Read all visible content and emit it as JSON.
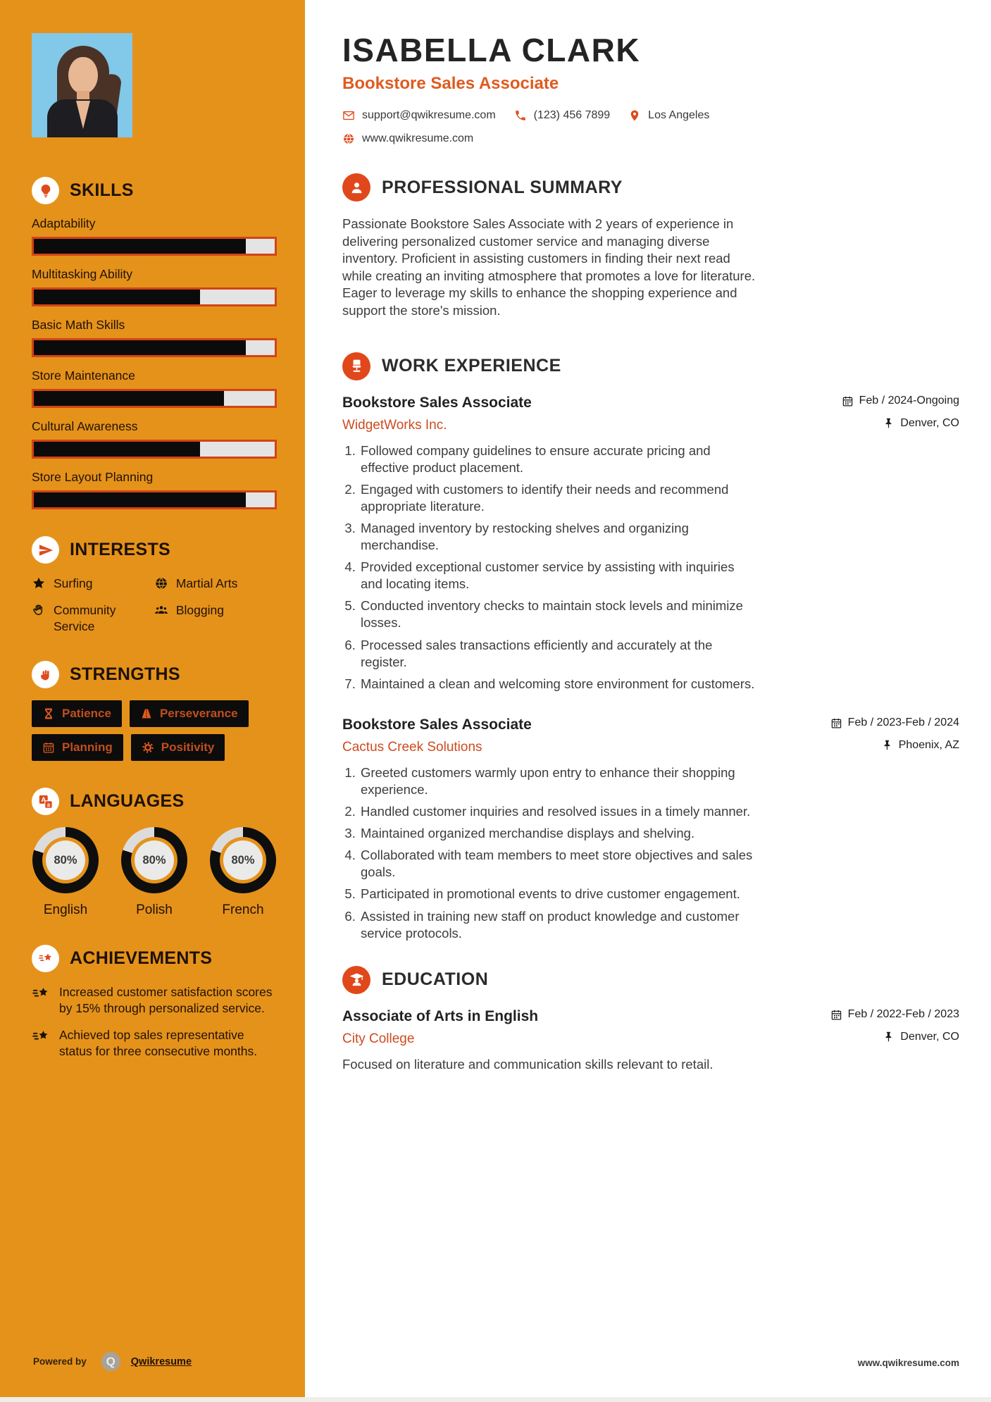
{
  "colors": {
    "sidebar": "#E5921B",
    "accent": "#DE4A1B",
    "badge_bg": "#0C0C0C",
    "bar_fill": "#0B0B0B",
    "bar_border": "#D24415",
    "photo_bg": "#82C8E8"
  },
  "header": {
    "name": "ISABELLA CLARK",
    "title": "Bookstore Sales Associate",
    "email": "support@qwikresume.com",
    "phone": "(123) 456 7899",
    "location": "Los Angeles",
    "website": "www.qwikresume.com"
  },
  "sidebar": {
    "skills": {
      "title": "SKILLS",
      "icon": "lightbulb-icon",
      "items": [
        {
          "label": "Adaptability",
          "level": 88
        },
        {
          "label": "Multitasking Ability",
          "level": 69
        },
        {
          "label": "Basic Math Skills",
          "level": 88
        },
        {
          "label": "Store Maintenance",
          "level": 79
        },
        {
          "label": "Cultural Awareness",
          "level": 69
        },
        {
          "label": "Store Layout Planning",
          "level": 88
        }
      ]
    },
    "interests": {
      "title": "INTERESTS",
      "icon": "paper-plane-icon",
      "items": [
        {
          "label": "Surfing",
          "icon": "star-icon"
        },
        {
          "label": "Martial Arts",
          "icon": "globe-icon"
        },
        {
          "label": "Community Service",
          "icon": "hand-icon"
        },
        {
          "label": "Blogging",
          "icon": "users-icon"
        }
      ]
    },
    "strengths": {
      "title": "STRENGTHS",
      "icon": "fist-icon",
      "items": [
        {
          "label": "Patience",
          "icon": "hourglass-icon"
        },
        {
          "label": "Perseverance",
          "icon": "road-icon"
        },
        {
          "label": "Planning",
          "icon": "calendar-icon"
        },
        {
          "label": "Positivity",
          "icon": "gear-icon"
        }
      ]
    },
    "languages": {
      "title": "LANGUAGES",
      "icon": "translate-icon",
      "items": [
        {
          "label": "English",
          "percent": 80,
          "percent_label": "80%"
        },
        {
          "label": "Polish",
          "percent": 80,
          "percent_label": "80%"
        },
        {
          "label": "French",
          "percent": 80,
          "percent_label": "80%"
        }
      ]
    },
    "achievements": {
      "title": "ACHIEVEMENTS",
      "icon": "shooting-star-icon",
      "items": [
        "Increased customer satisfaction scores by 15% through personalized service.",
        "Achieved top sales representative status for three consecutive months."
      ]
    },
    "footer": {
      "powered_by": "Powered by",
      "brand": "Qwikresume",
      "logo": "q-logo"
    }
  },
  "summary": {
    "title": "PROFESSIONAL SUMMARY",
    "icon": "person-icon",
    "text": "Passionate Bookstore Sales Associate with 2 years of experience in delivering personalized customer service and managing diverse inventory. Proficient in assisting customers in finding their next read while creating an inviting atmosphere that promotes a love for literature. Eager to leverage my skills to enhance the shopping experience and support the store's mission."
  },
  "experience": {
    "title": "WORK EXPERIENCE",
    "icon": "office-chair-icon",
    "jobs": [
      {
        "role": "Bookstore Sales Associate",
        "company": "WidgetWorks Inc.",
        "dates": "Feb / 2024-Ongoing",
        "location": "Denver, CO",
        "bullets": [
          "Followed company guidelines to ensure accurate pricing and effective product placement.",
          "Engaged with customers to identify their needs and recommend appropriate literature.",
          "Managed inventory by restocking shelves and organizing merchandise.",
          "Provided exceptional customer service by assisting with inquiries and locating items.",
          "Conducted inventory checks to maintain stock levels and minimize losses.",
          "Processed sales transactions efficiently and accurately at the register.",
          "Maintained a clean and welcoming store environment for customers."
        ]
      },
      {
        "role": "Bookstore Sales Associate",
        "company": "Cactus Creek Solutions",
        "dates": "Feb / 2023-Feb / 2024",
        "location": "Phoenix, AZ",
        "bullets": [
          "Greeted customers warmly upon entry to enhance their shopping experience.",
          "Handled customer inquiries and resolved issues in a timely manner.",
          "Maintained organized merchandise displays and shelving.",
          "Collaborated with team members to meet store objectives and sales goals.",
          "Participated in promotional events to drive customer engagement.",
          "Assisted in training new staff on product knowledge and customer service protocols."
        ]
      }
    ]
  },
  "education": {
    "title": "EDUCATION",
    "icon": "graduate-icon",
    "degree": "Associate of Arts in English",
    "school": "City College",
    "dates": "Feb / 2022-Feb / 2023",
    "location": "Denver, CO",
    "note": "Focused on literature and communication skills relevant to retail."
  },
  "footer": {
    "website": "www.qwikresume.com"
  }
}
